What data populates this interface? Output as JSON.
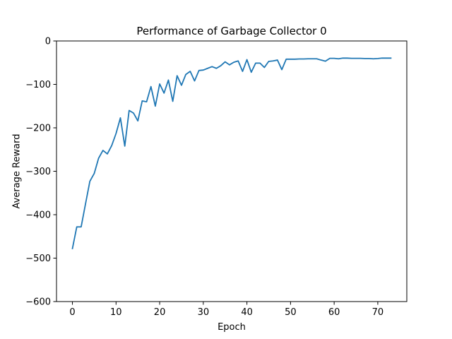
{
  "chart_data": {
    "type": "line",
    "title": "Performance of Garbage Collector 0",
    "xlabel": "Epoch",
    "ylabel": "Average Reward",
    "xlim": [
      -3.65,
      76.65
    ],
    "ylim": [
      -600,
      0
    ],
    "x_ticks": [
      0,
      10,
      20,
      30,
      40,
      50,
      60,
      70
    ],
    "y_ticks": [
      -600,
      -500,
      -400,
      -300,
      -200,
      -100,
      0
    ],
    "x_tick_labels": [
      "0",
      "10",
      "20",
      "30",
      "40",
      "50",
      "60",
      "70"
    ],
    "y_tick_labels": [
      "−600",
      "−500",
      "−400",
      "−300",
      "−200",
      "−100",
      "0"
    ],
    "grid": false,
    "legend": "none",
    "series": [
      {
        "color": "#1f77b4",
        "x": [
          0,
          1,
          2,
          3,
          4,
          5,
          6,
          7,
          8,
          9,
          10,
          11,
          12,
          13,
          14,
          15,
          16,
          17,
          18,
          19,
          20,
          21,
          22,
          23,
          24,
          25,
          26,
          27,
          28,
          29,
          30,
          31,
          32,
          33,
          34,
          35,
          36,
          37,
          38,
          39,
          40,
          41,
          42,
          43,
          44,
          45,
          46,
          47,
          48,
          49,
          50,
          51,
          52,
          53,
          54,
          55,
          56,
          57,
          58,
          59,
          60,
          61,
          62,
          63,
          64,
          65,
          66,
          67,
          68,
          69,
          70,
          71,
          72,
          73
        ],
        "y": [
          -478,
          -428,
          -428,
          -375,
          -323,
          -305,
          -270,
          -252,
          -260,
          -241,
          -213,
          -177,
          -242,
          -160,
          -166,
          -184,
          -138,
          -140,
          -105,
          -150,
          -99,
          -120,
          -90,
          -139,
          -80,
          -102,
          -77,
          -70,
          -92,
          -68,
          -67,
          -63,
          -59,
          -63,
          -57,
          -48,
          -55,
          -49,
          -46,
          -70,
          -43,
          -72,
          -51,
          -51,
          -61,
          -47,
          -46,
          -44,
          -66,
          -42,
          -42,
          -42,
          -41.5,
          -41.5,
          -41,
          -41,
          -41,
          -44,
          -46.5,
          -40,
          -40,
          -41,
          -39.5,
          -39.5,
          -40,
          -40,
          -40,
          -40.5,
          -40.5,
          -41,
          -40.5,
          -39.5,
          -39.5,
          -39.5
        ]
      }
    ]
  }
}
